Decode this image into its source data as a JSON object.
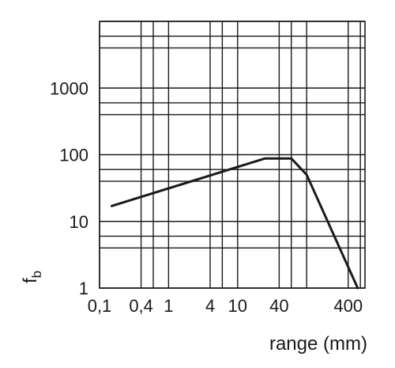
{
  "chart_data": {
    "type": "line",
    "xscale": "log",
    "yscale": "log",
    "xlabel": "range (mm)",
    "ylabel": "f",
    "ylabel_sub": "b",
    "xlim": [
      0.1,
      700
    ],
    "ylim": [
      1,
      10000
    ],
    "xticks": [
      {
        "value": 0.1,
        "label": "0,1"
      },
      {
        "value": 0.4,
        "label": "0,4"
      },
      {
        "value": 1,
        "label": "1"
      },
      {
        "value": 4,
        "label": "4"
      },
      {
        "value": 10,
        "label": "10"
      },
      {
        "value": 40,
        "label": "40"
      },
      {
        "value": 400,
        "label": "400"
      }
    ],
    "yticks": [
      {
        "value": 1,
        "label": "1"
      },
      {
        "value": 10,
        "label": "10"
      },
      {
        "value": 100,
        "label": "100"
      },
      {
        "value": 1000,
        "label": "1000"
      }
    ],
    "x_gridlines": [
      0.1,
      0.4,
      0.6,
      1,
      4,
      6,
      10,
      40,
      60,
      100,
      400,
      600
    ],
    "y_gridlines": [
      1,
      4,
      6,
      10,
      40,
      60,
      100,
      400,
      600,
      1000,
      4000,
      6000,
      10000
    ],
    "grid": true,
    "series": [
      {
        "x": [
          0.15,
          25,
          60,
          100,
          550
        ],
        "y": [
          17,
          88,
          88,
          50,
          1
        ]
      }
    ]
  }
}
